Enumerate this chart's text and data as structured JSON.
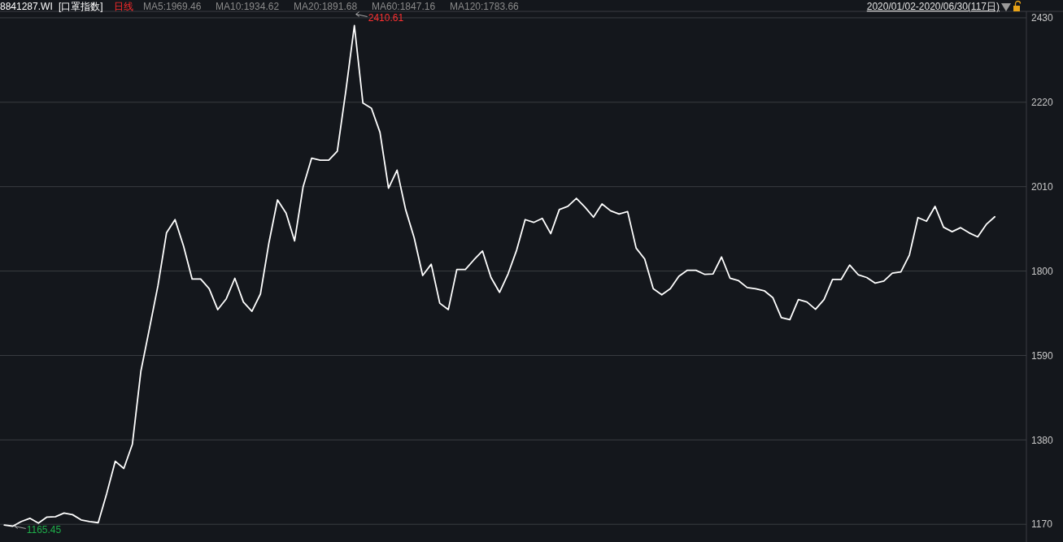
{
  "chart_data": {
    "type": "line",
    "title": "8841287.WI",
    "subtitle": "[口罩指数]",
    "annotations": [
      "日线",
      "MA5:1969.46",
      "MA10:1934.62",
      "MA20:1891.68",
      "MA60:1847.16",
      "MA120:1783.66",
      "2020/01/02-2020/06/30(117日)",
      "2410.61",
      "1165.45"
    ],
    "categories": [
      null,
      null,
      null,
      null,
      null,
      null,
      null,
      null,
      null,
      null,
      null,
      null,
      null,
      null,
      null,
      null,
      null,
      null,
      null,
      null,
      null,
      null,
      null,
      null,
      null,
      null,
      null,
      null,
      null,
      null,
      null,
      null,
      null,
      null,
      null,
      null,
      null,
      null,
      null,
      null,
      null,
      null,
      null,
      null,
      null,
      null,
      null,
      null,
      null,
      null,
      null,
      null,
      null,
      null,
      null,
      null,
      null,
      null,
      null,
      null,
      null,
      null,
      null,
      null,
      null,
      null,
      null,
      null,
      null,
      null,
      null,
      null,
      null,
      null,
      null,
      null,
      null,
      null,
      null,
      null,
      null,
      null,
      null,
      null,
      null,
      null,
      null,
      null,
      null,
      null,
      null,
      null,
      null,
      null,
      null,
      null,
      null,
      null,
      null,
      null,
      null,
      null,
      null,
      null,
      null,
      null,
      null,
      null,
      null,
      null,
      null,
      null,
      null,
      null,
      null,
      null,
      null
    ],
    "series": [
      {
        "color": "#ffffff",
        "values": [
          1168,
          1165.45,
          1177,
          1185,
          1173,
          1188,
          1189,
          1198,
          1194,
          1181,
          1177,
          1174,
          1247,
          1327,
          1309,
          1369,
          1551,
          1657,
          1764,
          1895,
          1928,
          1862,
          1780,
          1780,
          1756,
          1704,
          1731,
          1782,
          1723,
          1700,
          1743,
          1871,
          1977,
          1944,
          1875,
          2010,
          2081,
          2076,
          2076,
          2098,
          2248,
          2410.61,
          2218,
          2205,
          2145,
          2006,
          2051,
          1953,
          1883,
          1789,
          1817,
          1720,
          1704,
          1804,
          1804,
          1828,
          1850,
          1784,
          1747,
          1793,
          1852,
          1928,
          1921,
          1931,
          1893,
          1953,
          1961,
          1981,
          1959,
          1934,
          1967,
          1950,
          1942,
          1948,
          1857,
          1830,
          1756,
          1741,
          1756,
          1787,
          1802,
          1802,
          1792,
          1793,
          1835,
          1782,
          1776,
          1759,
          1756,
          1751,
          1734,
          1684,
          1679,
          1729,
          1723,
          1705,
          1729,
          1779,
          1779,
          1815,
          1791,
          1784,
          1770,
          1775,
          1795,
          1798,
          1840,
          1933,
          1924,
          1961,
          1909,
          1898,
          1908,
          1895,
          1885,
          1916,
          1935
        ]
      }
    ],
    "ylim": [
      1126,
      2446
    ],
    "yticks": [
      1170,
      1380,
      1590,
      1800,
      2010,
      2220,
      2430
    ],
    "grid": "y",
    "marker": "none",
    "line_style": "solid"
  }
}
